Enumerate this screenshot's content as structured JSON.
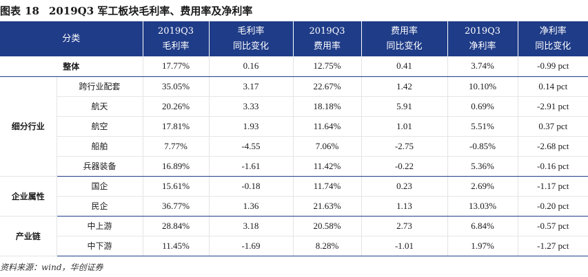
{
  "title": {
    "label": "图表",
    "number": "18",
    "text": "2019Q3 军工板块毛利率、费用率及净利率"
  },
  "header": {
    "category": "分类",
    "columns": [
      {
        "line1": "2019Q3",
        "line2": "毛利率"
      },
      {
        "line1": "毛利率",
        "line2": "同比变化"
      },
      {
        "line1": "2019Q3",
        "line2": "费用率"
      },
      {
        "line1": "费用率",
        "line2": "同比变化"
      },
      {
        "line1": "2019Q3",
        "line2": "净利率"
      },
      {
        "line1": "净利率",
        "line2": "同比变化"
      }
    ]
  },
  "total": {
    "label": "整体",
    "values": [
      "17.77%",
      "0.16",
      "12.75%",
      "0.41",
      "3.74%",
      "-0.99 pct"
    ]
  },
  "groups": [
    {
      "label": "细分行业",
      "rows": [
        {
          "label": "跨行业配套",
          "values": [
            "35.05%",
            "3.17",
            "22.67%",
            "1.42",
            "10.10%",
            "0.14 pct"
          ]
        },
        {
          "label": "航天",
          "values": [
            "20.26%",
            "3.33",
            "18.18%",
            "5.91",
            "0.69%",
            "-2.91 pct"
          ]
        },
        {
          "label": "航空",
          "values": [
            "17.81%",
            "1.93",
            "11.64%",
            "1.01",
            "5.51%",
            "0.37 pct"
          ]
        },
        {
          "label": "船舶",
          "values": [
            "7.77%",
            "-4.55",
            "7.06%",
            "-2.75",
            "-0.85%",
            "-2.68 pct"
          ]
        },
        {
          "label": "兵器装备",
          "values": [
            "16.89%",
            "-1.61",
            "11.42%",
            "-0.22",
            "5.36%",
            "-0.16 pct"
          ]
        }
      ]
    },
    {
      "label": "企业属性",
      "rows": [
        {
          "label": "国企",
          "values": [
            "15.61%",
            "-0.18",
            "11.74%",
            "0.23",
            "2.69%",
            "-1.17 pct"
          ]
        },
        {
          "label": "民企",
          "values": [
            "36.77%",
            "1.36",
            "21.63%",
            "1.13",
            "13.03%",
            "-0.20 pct"
          ]
        }
      ]
    },
    {
      "label": "产业链",
      "rows": [
        {
          "label": "中上游",
          "values": [
            "28.84%",
            "3.18",
            "20.58%",
            "2.73",
            "6.84%",
            "-0.57 pct"
          ]
        },
        {
          "label": "中下游",
          "values": [
            "11.45%",
            "-1.69",
            "8.28%",
            "-1.01",
            "1.97%",
            "-1.27 pct"
          ]
        }
      ]
    }
  ],
  "source": "资料来源：wind，华创证券"
}
